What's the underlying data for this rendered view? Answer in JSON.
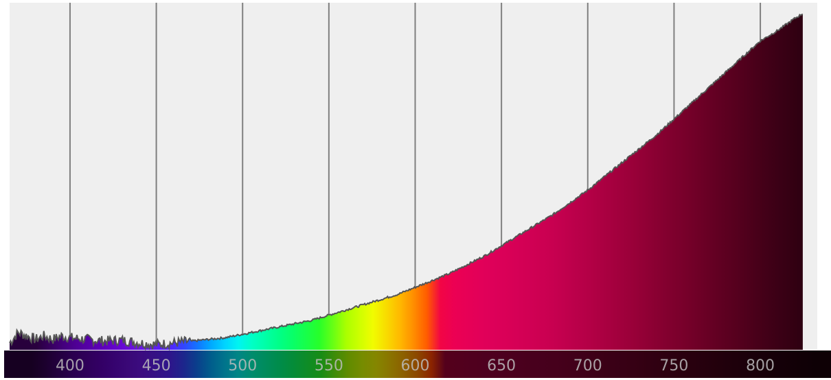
{
  "chart_data": {
    "type": "area",
    "title": "",
    "xlabel": "",
    "ylabel": "",
    "xlim": [
      365,
      833
    ],
    "ylim": [
      0,
      1
    ],
    "grid": true,
    "x_ticks": [
      400,
      450,
      500,
      550,
      600,
      650,
      700,
      750,
      800
    ],
    "x_tick_labels": [
      "400",
      "450",
      "500",
      "550",
      "600",
      "650",
      "700",
      "750",
      "800"
    ],
    "series": [
      {
        "x": [
          365,
          370,
          375,
          380,
          385,
          390,
          395,
          400,
          410,
          420,
          430,
          440,
          450,
          460,
          470,
          480,
          490,
          500,
          510,
          520,
          530,
          540,
          550,
          560,
          570,
          580,
          590,
          600,
          610,
          620,
          630,
          640,
          650,
          660,
          670,
          680,
          690,
          700,
          710,
          720,
          730,
          740,
          750,
          760,
          770,
          780,
          790,
          800,
          810,
          820,
          825
        ],
        "values": [
          0.02,
          0.05,
          0.04,
          0.03,
          0.04,
          0.03,
          0.04,
          0.035,
          0.03,
          0.025,
          0.028,
          0.02,
          0.015,
          0.02,
          0.025,
          0.03,
          0.035,
          0.045,
          0.055,
          0.065,
          0.075,
          0.085,
          0.1,
          0.115,
          0.13,
          0.145,
          0.16,
          0.18,
          0.2,
          0.22,
          0.245,
          0.27,
          0.3,
          0.33,
          0.36,
          0.39,
          0.425,
          0.46,
          0.5,
          0.54,
          0.58,
          0.62,
          0.665,
          0.71,
          0.755,
          0.8,
          0.845,
          0.89,
          0.92,
          0.955,
          0.97
        ]
      }
    ],
    "colors": {
      "plot_background": "#efefef",
      "gridline": "#7f7f7f",
      "outline": "#555555",
      "axis_bar": "#1a0a22",
      "tick_label": "#bdbdbd"
    }
  }
}
